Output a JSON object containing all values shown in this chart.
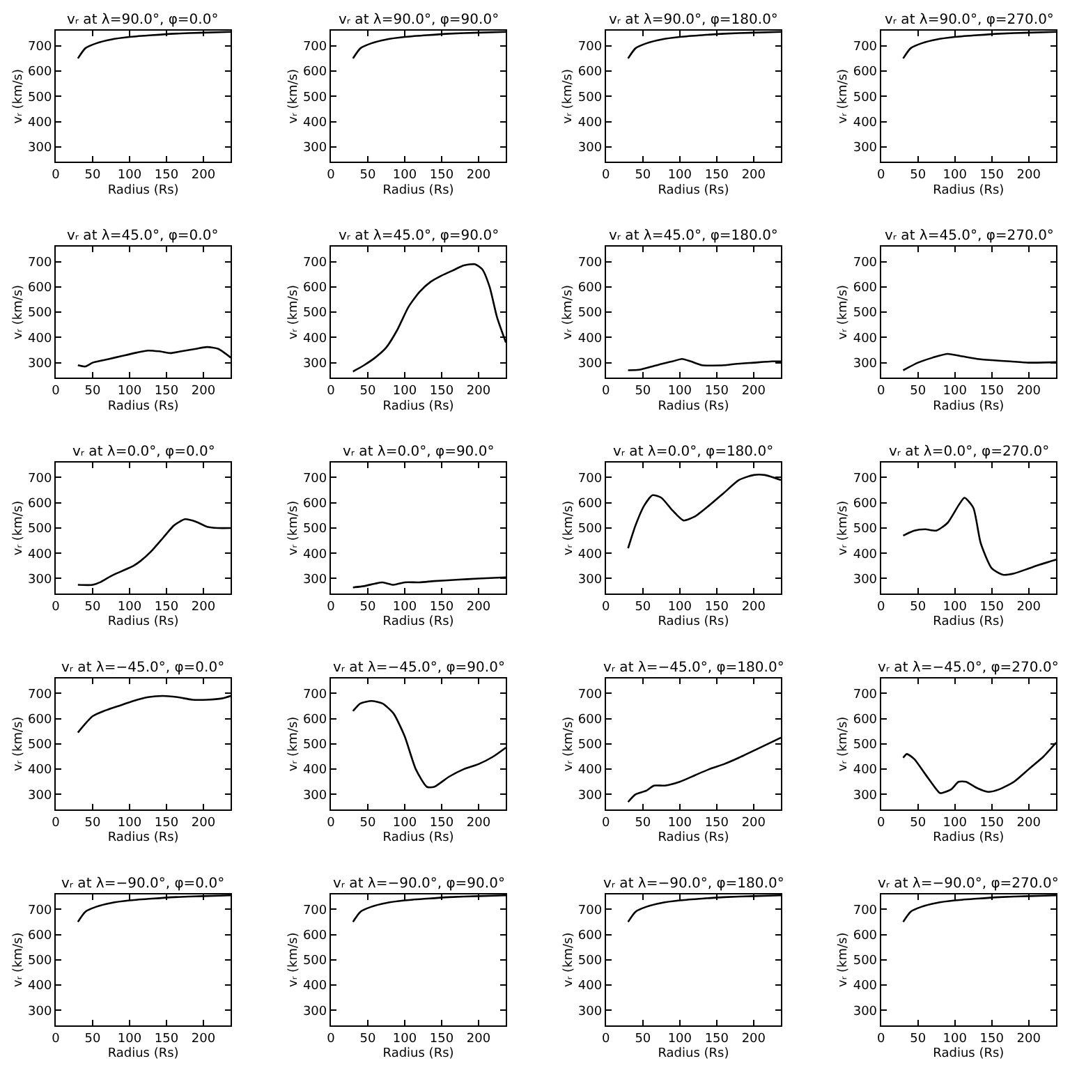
{
  "chart_data": [
    {
      "type": "line",
      "title": "vᵣ at λ=90.0°, φ=0.0°",
      "xlabel": "Radius (Rs)",
      "ylabel": "vᵣ (km/s)",
      "color": "#000000",
      "x": [
        30,
        40,
        55,
        75,
        100,
        130,
        160,
        200,
        237
      ],
      "values": [
        650,
        690,
        710,
        725,
        735,
        742,
        748,
        752,
        755
      ],
      "xlim": [
        0,
        237
      ],
      "ylim": [
        240,
        760
      ],
      "xticks": [
        0,
        50,
        100,
        150,
        200
      ],
      "yticks": [
        300,
        400,
        500,
        600,
        700
      ]
    },
    {
      "type": "line",
      "title": "vᵣ at λ=90.0°, φ=90.0°",
      "xlabel": "Radius (Rs)",
      "ylabel": "vᵣ (km/s)",
      "color": "#000000",
      "x": [
        30,
        40,
        55,
        75,
        100,
        130,
        160,
        200,
        237
      ],
      "values": [
        650,
        690,
        710,
        725,
        735,
        742,
        748,
        752,
        755
      ],
      "xlim": [
        0,
        237
      ],
      "ylim": [
        240,
        760
      ],
      "xticks": [
        0,
        50,
        100,
        150,
        200
      ],
      "yticks": [
        300,
        400,
        500,
        600,
        700
      ]
    },
    {
      "type": "line",
      "title": "vᵣ at λ=90.0°, φ=180.0°",
      "xlabel": "Radius (Rs)",
      "ylabel": "vᵣ (km/s)",
      "color": "#000000",
      "x": [
        30,
        40,
        55,
        75,
        100,
        130,
        160,
        200,
        237
      ],
      "values": [
        650,
        690,
        710,
        725,
        735,
        742,
        748,
        752,
        755
      ],
      "xlim": [
        0,
        237
      ],
      "ylim": [
        240,
        760
      ],
      "xticks": [
        0,
        50,
        100,
        150,
        200
      ],
      "yticks": [
        300,
        400,
        500,
        600,
        700
      ]
    },
    {
      "type": "line",
      "title": "vᵣ at λ=90.0°, φ=270.0°",
      "xlabel": "Radius (Rs)",
      "ylabel": "vᵣ (km/s)",
      "color": "#000000",
      "x": [
        30,
        40,
        55,
        75,
        100,
        130,
        160,
        200,
        237
      ],
      "values": [
        650,
        690,
        710,
        725,
        735,
        742,
        748,
        752,
        755
      ],
      "xlim": [
        0,
        237
      ],
      "ylim": [
        240,
        760
      ],
      "xticks": [
        0,
        50,
        100,
        150,
        200
      ],
      "yticks": [
        300,
        400,
        500,
        600,
        700
      ]
    },
    {
      "type": "line",
      "title": "vᵣ at λ=45.0°, φ=0.0°",
      "xlabel": "Radius (Rs)",
      "ylabel": "vᵣ (km/s)",
      "color": "#000000",
      "x": [
        30,
        40,
        50,
        65,
        80,
        95,
        110,
        125,
        140,
        155,
        170,
        190,
        205,
        220,
        237
      ],
      "values": [
        290,
        285,
        300,
        310,
        320,
        330,
        340,
        348,
        345,
        338,
        345,
        355,
        362,
        355,
        320
      ],
      "xlim": [
        0,
        237
      ],
      "ylim": [
        240,
        760
      ],
      "xticks": [
        0,
        50,
        100,
        150,
        200
      ],
      "yticks": [
        300,
        400,
        500,
        600,
        700
      ]
    },
    {
      "type": "line",
      "title": "vᵣ at λ=45.0°, φ=90.0°",
      "xlabel": "Radius (Rs)",
      "ylabel": "vᵣ (km/s)",
      "color": "#000000",
      "x": [
        30,
        45,
        60,
        75,
        90,
        105,
        120,
        135,
        150,
        165,
        180,
        195,
        205,
        215,
        225,
        237
      ],
      "values": [
        265,
        290,
        320,
        360,
        430,
        520,
        580,
        620,
        645,
        665,
        685,
        690,
        670,
        600,
        480,
        380
      ],
      "xlim": [
        0,
        237
      ],
      "ylim": [
        240,
        760
      ],
      "xticks": [
        0,
        50,
        100,
        150,
        200
      ],
      "yticks": [
        300,
        400,
        500,
        600,
        700
      ]
    },
    {
      "type": "line",
      "title": "vᵣ at λ=45.0°, φ=180.0°",
      "xlabel": "Radius (Rs)",
      "ylabel": "vᵣ (km/s)",
      "color": "#000000",
      "x": [
        30,
        45,
        60,
        75,
        90,
        103,
        115,
        130,
        160,
        175,
        200,
        225,
        237
      ],
      "values": [
        270,
        272,
        283,
        295,
        305,
        315,
        305,
        290,
        290,
        295,
        300,
        305,
        305
      ],
      "xlim": [
        0,
        237
      ],
      "ylim": [
        240,
        760
      ],
      "xticks": [
        0,
        50,
        100,
        150,
        200
      ],
      "yticks": [
        300,
        400,
        500,
        600,
        700
      ]
    },
    {
      "type": "line",
      "title": "vᵣ at λ=45.0°, φ=270.0°",
      "xlabel": "Radius (Rs)",
      "ylabel": "vᵣ (km/s)",
      "color": "#000000",
      "x": [
        30,
        50,
        70,
        90,
        110,
        130,
        150,
        175,
        200,
        237
      ],
      "values": [
        270,
        300,
        320,
        335,
        325,
        315,
        310,
        305,
        300,
        302
      ],
      "xlim": [
        0,
        237
      ],
      "ylim": [
        240,
        760
      ],
      "xticks": [
        0,
        50,
        100,
        150,
        200
      ],
      "yticks": [
        300,
        400,
        500,
        600,
        700
      ]
    },
    {
      "type": "line",
      "title": "vᵣ at λ=0.0°, φ=0.0°",
      "xlabel": "Radius (Rs)",
      "ylabel": "vᵣ (km/s)",
      "color": "#000000",
      "x": [
        30,
        50,
        60,
        75,
        90,
        105,
        115,
        130,
        145,
        160,
        175,
        190,
        205,
        220,
        237
      ],
      "values": [
        275,
        275,
        285,
        310,
        330,
        350,
        370,
        410,
        460,
        510,
        535,
        525,
        505,
        500,
        500
      ],
      "xlim": [
        0,
        237
      ],
      "ylim": [
        240,
        760
      ],
      "xticks": [
        0,
        50,
        100,
        150,
        200
      ],
      "yticks": [
        300,
        400,
        500,
        600,
        700
      ]
    },
    {
      "type": "line",
      "title": "vᵣ at λ=0.0°, φ=90.0°",
      "xlabel": "Radius (Rs)",
      "ylabel": "vᵣ (km/s)",
      "color": "#000000",
      "x": [
        30,
        45,
        60,
        70,
        85,
        100,
        120,
        140,
        170,
        200,
        237
      ],
      "values": [
        265,
        270,
        280,
        285,
        275,
        285,
        285,
        290,
        295,
        300,
        305
      ],
      "xlim": [
        0,
        237
      ],
      "ylim": [
        240,
        760
      ],
      "xticks": [
        0,
        50,
        100,
        150,
        200
      ],
      "yticks": [
        300,
        400,
        500,
        600,
        700
      ]
    },
    {
      "type": "line",
      "title": "vᵣ at λ=0.0°, φ=180.0°",
      "xlabel": "Radius (Rs)",
      "ylabel": "vᵣ (km/s)",
      "color": "#000000",
      "x": [
        30,
        40,
        52,
        63,
        75,
        90,
        105,
        120,
        140,
        160,
        180,
        200,
        215,
        237
      ],
      "values": [
        420,
        510,
        590,
        630,
        620,
        570,
        530,
        545,
        590,
        640,
        690,
        710,
        710,
        690
      ],
      "xlim": [
        0,
        237
      ],
      "ylim": [
        240,
        760
      ],
      "xticks": [
        0,
        50,
        100,
        150,
        200
      ],
      "yticks": [
        300,
        400,
        500,
        600,
        700
      ]
    },
    {
      "type": "line",
      "title": "vᵣ at λ=0.0°, φ=270.0°",
      "xlabel": "Radius (Rs)",
      "ylabel": "vᵣ (km/s)",
      "color": "#000000",
      "x": [
        30,
        45,
        60,
        75,
        90,
        105,
        113,
        125,
        135,
        150,
        165,
        180,
        200,
        215,
        237
      ],
      "values": [
        470,
        490,
        495,
        490,
        520,
        590,
        620,
        580,
        440,
        340,
        315,
        320,
        340,
        355,
        375
      ],
      "xlim": [
        0,
        237
      ],
      "ylim": [
        240,
        760
      ],
      "xticks": [
        0,
        50,
        100,
        150,
        200
      ],
      "yticks": [
        300,
        400,
        500,
        600,
        700
      ]
    },
    {
      "type": "line",
      "title": "vᵣ at λ=−45.0°, φ=0.0°",
      "xlabel": "Radius (Rs)",
      "ylabel": "vᵣ (km/s)",
      "color": "#000000",
      "x": [
        30,
        40,
        50,
        65,
        85,
        105,
        125,
        145,
        165,
        185,
        205,
        225,
        237
      ],
      "values": [
        545,
        580,
        610,
        630,
        650,
        670,
        685,
        690,
        685,
        675,
        675,
        680,
        690
      ],
      "xlim": [
        0,
        237
      ],
      "ylim": [
        240,
        760
      ],
      "xticks": [
        0,
        50,
        100,
        150,
        200
      ],
      "yticks": [
        300,
        400,
        500,
        600,
        700
      ]
    },
    {
      "type": "line",
      "title": "vᵣ at λ=−45.0°, φ=90.0°",
      "xlabel": "Radius (Rs)",
      "ylabel": "vᵣ (km/s)",
      "color": "#000000",
      "x": [
        30,
        40,
        55,
        70,
        85,
        100,
        115,
        130,
        140,
        160,
        180,
        200,
        220,
        237
      ],
      "values": [
        630,
        660,
        670,
        660,
        620,
        530,
        400,
        330,
        330,
        370,
        400,
        420,
        450,
        485
      ],
      "xlim": [
        0,
        237
      ],
      "ylim": [
        240,
        760
      ],
      "xticks": [
        0,
        50,
        100,
        150,
        200
      ],
      "yticks": [
        300,
        400,
        500,
        600,
        700
      ]
    },
    {
      "type": "line",
      "title": "vᵣ at λ=−45.0°, φ=180.0°",
      "xlabel": "Radius (Rs)",
      "ylabel": "vᵣ (km/s)",
      "color": "#000000",
      "x": [
        30,
        40,
        55,
        65,
        80,
        100,
        120,
        140,
        160,
        180,
        205,
        237
      ],
      "values": [
        270,
        300,
        315,
        335,
        335,
        350,
        375,
        400,
        420,
        445,
        480,
        525
      ],
      "xlim": [
        0,
        237
      ],
      "ylim": [
        240,
        760
      ],
      "xticks": [
        0,
        50,
        100,
        150,
        200
      ],
      "yticks": [
        300,
        400,
        500,
        600,
        700
      ]
    },
    {
      "type": "line",
      "title": "vᵣ at λ=−45.0°, φ=270.0°",
      "xlabel": "Radius (Rs)",
      "ylabel": "vᵣ (km/s)",
      "color": "#000000",
      "x": [
        30,
        35,
        45,
        60,
        75,
        80,
        95,
        105,
        115,
        130,
        145,
        160,
        180,
        200,
        220,
        237
      ],
      "values": [
        445,
        460,
        440,
        380,
        320,
        305,
        320,
        350,
        350,
        325,
        310,
        320,
        350,
        400,
        450,
        505
      ],
      "xlim": [
        0,
        237
      ],
      "ylim": [
        240,
        760
      ],
      "xticks": [
        0,
        50,
        100,
        150,
        200
      ],
      "yticks": [
        300,
        400,
        500,
        600,
        700
      ]
    },
    {
      "type": "line",
      "title": "vᵣ at λ=−90.0°, φ=0.0°",
      "xlabel": "Radius (Rs)",
      "ylabel": "vᵣ (km/s)",
      "color": "#000000",
      "x": [
        30,
        40,
        55,
        75,
        100,
        130,
        160,
        200,
        237
      ],
      "values": [
        650,
        690,
        710,
        725,
        735,
        742,
        748,
        752,
        755
      ],
      "xlim": [
        0,
        237
      ],
      "ylim": [
        240,
        760
      ],
      "xticks": [
        0,
        50,
        100,
        150,
        200
      ],
      "yticks": [
        300,
        400,
        500,
        600,
        700
      ]
    },
    {
      "type": "line",
      "title": "vᵣ at λ=−90.0°, φ=90.0°",
      "xlabel": "Radius (Rs)",
      "ylabel": "vᵣ (km/s)",
      "color": "#000000",
      "x": [
        30,
        40,
        55,
        75,
        100,
        130,
        160,
        200,
        237
      ],
      "values": [
        650,
        690,
        710,
        725,
        735,
        742,
        748,
        752,
        755
      ],
      "xlim": [
        0,
        237
      ],
      "ylim": [
        240,
        760
      ],
      "xticks": [
        0,
        50,
        100,
        150,
        200
      ],
      "yticks": [
        300,
        400,
        500,
        600,
        700
      ]
    },
    {
      "type": "line",
      "title": "vᵣ at λ=−90.0°, φ=180.0°",
      "xlabel": "Radius (Rs)",
      "ylabel": "vᵣ (km/s)",
      "color": "#000000",
      "x": [
        30,
        40,
        55,
        75,
        100,
        130,
        160,
        200,
        237
      ],
      "values": [
        650,
        690,
        710,
        725,
        735,
        742,
        748,
        752,
        755
      ],
      "xlim": [
        0,
        237
      ],
      "ylim": [
        240,
        760
      ],
      "xticks": [
        0,
        50,
        100,
        150,
        200
      ],
      "yticks": [
        300,
        400,
        500,
        600,
        700
      ]
    },
    {
      "type": "line",
      "title": "vᵣ at λ=−90.0°, φ=270.0°",
      "xlabel": "Radius (Rs)",
      "ylabel": "vᵣ (km/s)",
      "color": "#000000",
      "x": [
        30,
        40,
        55,
        75,
        100,
        130,
        160,
        200,
        237
      ],
      "values": [
        650,
        690,
        710,
        725,
        735,
        742,
        748,
        752,
        755
      ],
      "xlim": [
        0,
        237
      ],
      "ylim": [
        240,
        760
      ],
      "xticks": [
        0,
        50,
        100,
        150,
        200
      ],
      "yticks": [
        300,
        400,
        500,
        600,
        700
      ]
    }
  ]
}
